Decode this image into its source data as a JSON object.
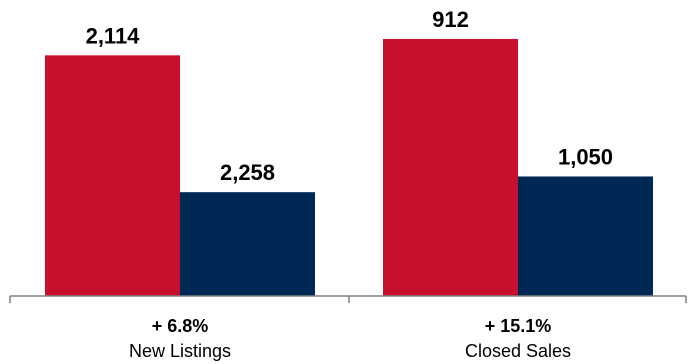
{
  "chart_data": {
    "type": "bar",
    "categories": [
      "New Listings",
      "Closed Sales"
    ],
    "changes": [
      "+ 6.8%",
      "+ 15.1%"
    ],
    "series": [
      {
        "values": [
          2114,
          2258
        ],
        "color": "#c8102e"
      },
      {
        "values": [
          912,
          1050
        ],
        "color": "#002855"
      }
    ],
    "value_labels": [
      [
        "2,114",
        "2,258"
      ],
      [
        "912",
        "1,050"
      ]
    ],
    "ylim": [
      0,
      2600
    ],
    "grid": false,
    "legend": "none"
  },
  "colors": {
    "prior": "#c8102e",
    "current": "#002855",
    "axis": "#7f7f7f"
  }
}
